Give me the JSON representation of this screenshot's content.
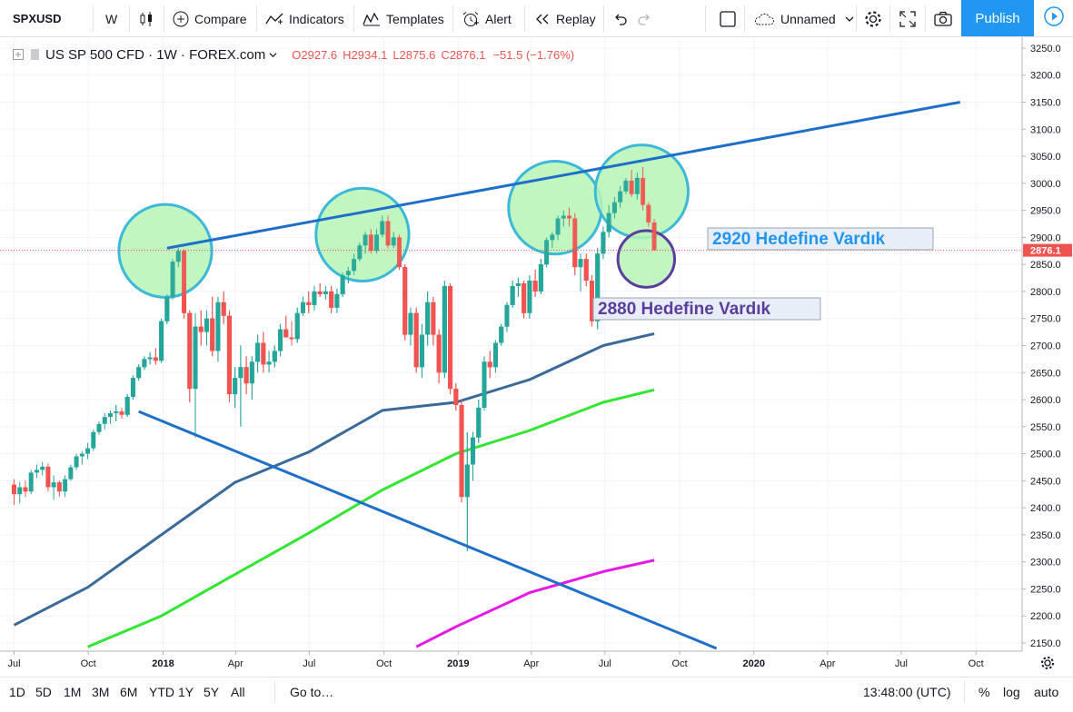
{
  "toolbar": {
    "symbol": "SPXUSD",
    "interval": "W",
    "compare": "Compare",
    "indicators": "Indicators",
    "templates": "Templates",
    "alert": "Alert",
    "replay": "Replay",
    "layout_name": "Unnamed",
    "publish": "Publish"
  },
  "legend": {
    "title": "US SP 500 CFD · 1W · FOREX.com",
    "open": "O2927.6",
    "high": "H2934.1",
    "low": "L2875.6",
    "close": "C2876.1",
    "change": "−51.5 (−1.76%)"
  },
  "annotations": {
    "label1": "2920 Hedefine Vardık",
    "label2": "2880 Hedefine Vardık"
  },
  "bottombar": {
    "ranges": [
      "1D",
      "5D",
      "1M",
      "3M",
      "6M",
      "YTD",
      "1Y",
      "5Y",
      "All"
    ],
    "goto": "Go to…",
    "time": "13:48:00 (UTC)",
    "percent": "%",
    "log": "log",
    "auto": "auto"
  },
  "colors": {
    "up": "#26a69a",
    "down": "#ef5350",
    "trendline": "#1e6fc9",
    "ma_dark": "#3a6a9a",
    "ma_green": "#32e632",
    "ma_magenta": "#e619e6",
    "circle_fill": "#b6f5b6",
    "circle_stroke": "#3cb8d8",
    "label1": "#2196f3",
    "label2": "#5c3d9e",
    "publish": "#2196f3"
  },
  "chart_data": {
    "type": "candlestick",
    "symbol": "US SP 500 CFD",
    "interval": "1W",
    "source": "FOREX.com",
    "ylim": [
      2140,
      3270
    ],
    "y_ticks": [
      2150,
      2200,
      2250,
      2300,
      2350,
      2400,
      2450,
      2500,
      2550,
      2600,
      2650,
      2700,
      2750,
      2800,
      2850,
      2900,
      2950,
      3000,
      3050,
      3100,
      3150,
      3200,
      3250
    ],
    "y_tick_labels": [
      "2150.0",
      "2200.0",
      "2250.0",
      "2300.0",
      "2350.0",
      "2400.0",
      "2450.0",
      "2500.0",
      "2550.0",
      "2600.0",
      "2650.0",
      "2700.0",
      "2750.0",
      "2800.0",
      "2850.0",
      "2900.0",
      "2950.0",
      "3000.0",
      "3050.0",
      "3100.0",
      "3150.0",
      "3200.0",
      "3250.0"
    ],
    "x_ticks": [
      {
        "label": "Jul",
        "t": 0.0
      },
      {
        "label": "Oct",
        "t": 13.1
      },
      {
        "label": "2018",
        "t": 26.3
      },
      {
        "label": "Apr",
        "t": 39.1
      },
      {
        "label": "Jul",
        "t": 52.1
      },
      {
        "label": "Oct",
        "t": 65.3
      },
      {
        "label": "2019",
        "t": 78.4
      },
      {
        "label": "Apr",
        "t": 91.3
      },
      {
        "label": "Jul",
        "t": 104.3
      },
      {
        "label": "Oct",
        "t": 117.5
      },
      {
        "label": "2020",
        "t": 130.6
      },
      {
        "label": "Apr",
        "t": 143.6
      },
      {
        "label": "Jul",
        "t": 156.6
      },
      {
        "label": "Oct",
        "t": 169.8
      }
    ],
    "last_price": 2876.1,
    "last_price_label": "2876.1",
    "candles": [
      {
        "t": 0,
        "o": 2443,
        "h": 2453,
        "l": 2405,
        "c": 2425
      },
      {
        "t": 1,
        "o": 2425,
        "h": 2448,
        "l": 2408,
        "c": 2438
      },
      {
        "t": 2,
        "o": 2438,
        "h": 2450,
        "l": 2420,
        "c": 2430
      },
      {
        "t": 3,
        "o": 2430,
        "h": 2470,
        "l": 2425,
        "c": 2465
      },
      {
        "t": 4,
        "o": 2465,
        "h": 2480,
        "l": 2455,
        "c": 2470
      },
      {
        "t": 5,
        "o": 2470,
        "h": 2485,
        "l": 2460,
        "c": 2476
      },
      {
        "t": 6,
        "o": 2476,
        "h": 2482,
        "l": 2430,
        "c": 2438
      },
      {
        "t": 7,
        "o": 2438,
        "h": 2460,
        "l": 2415,
        "c": 2447
      },
      {
        "t": 8,
        "o": 2447,
        "h": 2450,
        "l": 2420,
        "c": 2430
      },
      {
        "t": 9,
        "o": 2430,
        "h": 2460,
        "l": 2420,
        "c": 2453
      },
      {
        "t": 10,
        "o": 2453,
        "h": 2480,
        "l": 2450,
        "c": 2475
      },
      {
        "t": 11,
        "o": 2475,
        "h": 2500,
        "l": 2470,
        "c": 2495
      },
      {
        "t": 12,
        "o": 2495,
        "h": 2505,
        "l": 2480,
        "c": 2500
      },
      {
        "t": 13,
        "o": 2500,
        "h": 2520,
        "l": 2490,
        "c": 2510
      },
      {
        "t": 14,
        "o": 2510,
        "h": 2545,
        "l": 2505,
        "c": 2540
      },
      {
        "t": 15,
        "o": 2540,
        "h": 2560,
        "l": 2535,
        "c": 2555
      },
      {
        "t": 16,
        "o": 2555,
        "h": 2575,
        "l": 2545,
        "c": 2568
      },
      {
        "t": 17,
        "o": 2568,
        "h": 2580,
        "l": 2555,
        "c": 2575
      },
      {
        "t": 18,
        "o": 2575,
        "h": 2590,
        "l": 2560,
        "c": 2578
      },
      {
        "t": 19,
        "o": 2578,
        "h": 2585,
        "l": 2565,
        "c": 2572
      },
      {
        "t": 20,
        "o": 2572,
        "h": 2610,
        "l": 2568,
        "c": 2605
      },
      {
        "t": 21,
        "o": 2605,
        "h": 2645,
        "l": 2600,
        "c": 2640
      },
      {
        "t": 22,
        "o": 2640,
        "h": 2665,
        "l": 2635,
        "c": 2660
      },
      {
        "t": 23,
        "o": 2660,
        "h": 2680,
        "l": 2655,
        "c": 2675
      },
      {
        "t": 24,
        "o": 2675,
        "h": 2688,
        "l": 2665,
        "c": 2678
      },
      {
        "t": 25,
        "o": 2678,
        "h": 2695,
        "l": 2665,
        "c": 2672
      },
      {
        "t": 26,
        "o": 2672,
        "h": 2750,
        "l": 2668,
        "c": 2745
      },
      {
        "t": 27,
        "o": 2745,
        "h": 2795,
        "l": 2740,
        "c": 2790
      },
      {
        "t": 28,
        "o": 2790,
        "h": 2860,
        "l": 2785,
        "c": 2855
      },
      {
        "t": 29,
        "o": 2855,
        "h": 2880,
        "l": 2845,
        "c": 2875
      },
      {
        "t": 30,
        "o": 2875,
        "h": 2878,
        "l": 2750,
        "c": 2760
      },
      {
        "t": 31,
        "o": 2760,
        "h": 2765,
        "l": 2595,
        "c": 2620
      },
      {
        "t": 32,
        "o": 2620,
        "h": 2760,
        "l": 2530,
        "c": 2735
      },
      {
        "t": 33,
        "o": 2735,
        "h": 2765,
        "l": 2700,
        "c": 2725
      },
      {
        "t": 34,
        "o": 2725,
        "h": 2765,
        "l": 2700,
        "c": 2750
      },
      {
        "t": 35,
        "o": 2750,
        "h": 2790,
        "l": 2680,
        "c": 2690
      },
      {
        "t": 36,
        "o": 2690,
        "h": 2790,
        "l": 2670,
        "c": 2780
      },
      {
        "t": 37,
        "o": 2780,
        "h": 2800,
        "l": 2740,
        "c": 2755
      },
      {
        "t": 38,
        "o": 2755,
        "h": 2765,
        "l": 2595,
        "c": 2610
      },
      {
        "t": 39,
        "o": 2610,
        "h": 2660,
        "l": 2585,
        "c": 2640
      },
      {
        "t": 40,
        "o": 2640,
        "h": 2700,
        "l": 2550,
        "c": 2660
      },
      {
        "t": 41,
        "o": 2660,
        "h": 2680,
        "l": 2610,
        "c": 2630
      },
      {
        "t": 42,
        "o": 2630,
        "h": 2680,
        "l": 2600,
        "c": 2670
      },
      {
        "t": 43,
        "o": 2670,
        "h": 2720,
        "l": 2650,
        "c": 2705
      },
      {
        "t": 44,
        "o": 2705,
        "h": 2725,
        "l": 2650,
        "c": 2665
      },
      {
        "t": 45,
        "o": 2665,
        "h": 2690,
        "l": 2650,
        "c": 2670
      },
      {
        "t": 46,
        "o": 2670,
        "h": 2700,
        "l": 2660,
        "c": 2690
      },
      {
        "t": 47,
        "o": 2690,
        "h": 2740,
        "l": 2680,
        "c": 2730
      },
      {
        "t": 48,
        "o": 2730,
        "h": 2755,
        "l": 2715,
        "c": 2715
      },
      {
        "t": 49,
        "o": 2715,
        "h": 2745,
        "l": 2700,
        "c": 2712
      },
      {
        "t": 50,
        "o": 2712,
        "h": 2770,
        "l": 2705,
        "c": 2760
      },
      {
        "t": 51,
        "o": 2760,
        "h": 2790,
        "l": 2755,
        "c": 2780
      },
      {
        "t": 52,
        "o": 2780,
        "h": 2800,
        "l": 2760,
        "c": 2775
      },
      {
        "t": 53,
        "o": 2775,
        "h": 2810,
        "l": 2765,
        "c": 2800
      },
      {
        "t": 54,
        "o": 2800,
        "h": 2815,
        "l": 2790,
        "c": 2795
      },
      {
        "t": 55,
        "o": 2795,
        "h": 2810,
        "l": 2785,
        "c": 2800
      },
      {
        "t": 56,
        "o": 2800,
        "h": 2810,
        "l": 2760,
        "c": 2770
      },
      {
        "t": 57,
        "o": 2770,
        "h": 2805,
        "l": 2760,
        "c": 2795
      },
      {
        "t": 58,
        "o": 2795,
        "h": 2835,
        "l": 2790,
        "c": 2830
      },
      {
        "t": 59,
        "o": 2830,
        "h": 2845,
        "l": 2815,
        "c": 2838
      },
      {
        "t": 60,
        "o": 2838,
        "h": 2870,
        "l": 2830,
        "c": 2860
      },
      {
        "t": 61,
        "o": 2860,
        "h": 2890,
        "l": 2855,
        "c": 2885
      },
      {
        "t": 62,
        "o": 2885,
        "h": 2910,
        "l": 2870,
        "c": 2905
      },
      {
        "t": 63,
        "o": 2905,
        "h": 2915,
        "l": 2870,
        "c": 2875
      },
      {
        "t": 64,
        "o": 2875,
        "h": 2915,
        "l": 2870,
        "c": 2905
      },
      {
        "t": 65,
        "o": 2905,
        "h": 2940,
        "l": 2900,
        "c": 2930
      },
      {
        "t": 66,
        "o": 2930,
        "h": 2940,
        "l": 2880,
        "c": 2885
      },
      {
        "t": 67,
        "o": 2885,
        "h": 2910,
        "l": 2880,
        "c": 2900
      },
      {
        "t": 68,
        "o": 2900,
        "h": 2905,
        "l": 2840,
        "c": 2845
      },
      {
        "t": 69,
        "o": 2845,
        "h": 2850,
        "l": 2710,
        "c": 2720
      },
      {
        "t": 70,
        "o": 2720,
        "h": 2770,
        "l": 2700,
        "c": 2760
      },
      {
        "t": 71,
        "o": 2760,
        "h": 2770,
        "l": 2650,
        "c": 2660
      },
      {
        "t": 72,
        "o": 2660,
        "h": 2740,
        "l": 2640,
        "c": 2720
      },
      {
        "t": 73,
        "o": 2720,
        "h": 2800,
        "l": 2700,
        "c": 2780
      },
      {
        "t": 74,
        "o": 2780,
        "h": 2790,
        "l": 2700,
        "c": 2720
      },
      {
        "t": 75,
        "o": 2720,
        "h": 2730,
        "l": 2630,
        "c": 2650
      },
      {
        "t": 76,
        "o": 2650,
        "h": 2820,
        "l": 2640,
        "c": 2810
      },
      {
        "t": 77,
        "o": 2810,
        "h": 2815,
        "l": 2610,
        "c": 2620
      },
      {
        "t": 78,
        "o": 2620,
        "h": 2630,
        "l": 2580,
        "c": 2590
      },
      {
        "t": 79,
        "o": 2590,
        "h": 2600,
        "l": 2410,
        "c": 2420
      },
      {
        "t": 80,
        "o": 2420,
        "h": 2540,
        "l": 2320,
        "c": 2480
      },
      {
        "t": 81,
        "o": 2480,
        "h": 2540,
        "l": 2450,
        "c": 2530
      },
      {
        "t": 82,
        "o": 2530,
        "h": 2600,
        "l": 2520,
        "c": 2585
      },
      {
        "t": 83,
        "o": 2585,
        "h": 2680,
        "l": 2580,
        "c": 2670
      },
      {
        "t": 84,
        "o": 2670,
        "h": 2690,
        "l": 2640,
        "c": 2660
      },
      {
        "t": 85,
        "o": 2660,
        "h": 2710,
        "l": 2650,
        "c": 2705
      },
      {
        "t": 86,
        "o": 2705,
        "h": 2740,
        "l": 2700,
        "c": 2735
      },
      {
        "t": 87,
        "o": 2735,
        "h": 2780,
        "l": 2725,
        "c": 2775
      },
      {
        "t": 88,
        "o": 2775,
        "h": 2820,
        "l": 2770,
        "c": 2810
      },
      {
        "t": 89,
        "o": 2810,
        "h": 2825,
        "l": 2790,
        "c": 2815
      },
      {
        "t": 90,
        "o": 2815,
        "h": 2820,
        "l": 2750,
        "c": 2760
      },
      {
        "t": 91,
        "o": 2760,
        "h": 2830,
        "l": 2750,
        "c": 2820
      },
      {
        "t": 92,
        "o": 2820,
        "h": 2840,
        "l": 2790,
        "c": 2800
      },
      {
        "t": 93,
        "o": 2800,
        "h": 2860,
        "l": 2795,
        "c": 2850
      },
      {
        "t": 94,
        "o": 2850,
        "h": 2900,
        "l": 2845,
        "c": 2895
      },
      {
        "t": 95,
        "o": 2895,
        "h": 2910,
        "l": 2880,
        "c": 2905
      },
      {
        "t": 96,
        "o": 2905,
        "h": 2940,
        "l": 2895,
        "c": 2935
      },
      {
        "t": 97,
        "o": 2935,
        "h": 2950,
        "l": 2920,
        "c": 2940
      },
      {
        "t": 98,
        "o": 2940,
        "h": 2955,
        "l": 2920,
        "c": 2935
      },
      {
        "t": 99,
        "o": 2935,
        "h": 2945,
        "l": 2830,
        "c": 2845
      },
      {
        "t": 100,
        "o": 2845,
        "h": 2870,
        "l": 2800,
        "c": 2860
      },
      {
        "t": 101,
        "o": 2860,
        "h": 2870,
        "l": 2810,
        "c": 2820
      },
      {
        "t": 102,
        "o": 2820,
        "h": 2830,
        "l": 2735,
        "c": 2745
      },
      {
        "t": 103,
        "o": 2745,
        "h": 2880,
        "l": 2730,
        "c": 2870
      },
      {
        "t": 104,
        "o": 2870,
        "h": 2920,
        "l": 2860,
        "c": 2910
      },
      {
        "t": 105,
        "o": 2910,
        "h": 2960,
        "l": 2900,
        "c": 2945
      },
      {
        "t": 106,
        "o": 2945,
        "h": 2975,
        "l": 2935,
        "c": 2965
      },
      {
        "t": 107,
        "o": 2965,
        "h": 2995,
        "l": 2955,
        "c": 2985
      },
      {
        "t": 108,
        "o": 2985,
        "h": 3010,
        "l": 2980,
        "c": 3005
      },
      {
        "t": 109,
        "o": 3005,
        "h": 3025,
        "l": 2975,
        "c": 2980
      },
      {
        "t": 110,
        "o": 2980,
        "h": 3020,
        "l": 2970,
        "c": 3010
      },
      {
        "t": 111,
        "o": 3010,
        "h": 3030,
        "l": 2950,
        "c": 2960
      },
      {
        "t": 112,
        "o": 2960,
        "h": 2965,
        "l": 2920,
        "c": 2927.6
      },
      {
        "t": 113,
        "o": 2927.6,
        "h": 2934.1,
        "l": 2875.6,
        "c": 2876.1
      }
    ],
    "moving_averages": [
      {
        "color": "#3a6a9a",
        "points": [
          [
            0,
            2183
          ],
          [
            13,
            2253
          ],
          [
            26,
            2350
          ],
          [
            39,
            2447
          ],
          [
            52,
            2503
          ],
          [
            65,
            2580
          ],
          [
            78,
            2595
          ],
          [
            91,
            2637
          ],
          [
            104,
            2700
          ],
          [
            113,
            2722
          ]
        ]
      },
      {
        "color": "#32e632",
        "points": [
          [
            13,
            2143
          ],
          [
            26,
            2200
          ],
          [
            39,
            2277
          ],
          [
            52,
            2353
          ],
          [
            65,
            2433
          ],
          [
            78,
            2500
          ],
          [
            91,
            2543
          ],
          [
            104,
            2595
          ],
          [
            113,
            2618
          ]
        ]
      },
      {
        "color": "#e619e6",
        "points": [
          [
            71,
            2143
          ],
          [
            78,
            2180
          ],
          [
            91,
            2243
          ],
          [
            104,
            2282
          ],
          [
            113,
            2303
          ]
        ]
      }
    ],
    "trendlines": [
      {
        "from": [
          27,
          2880
        ],
        "to": [
          167,
          3150
        ]
      },
      {
        "from": [
          22,
          2578
        ],
        "to": [
          124,
          2140
        ]
      }
    ],
    "circles": [
      {
        "t": 26.7,
        "v": 2875,
        "radius_weeks": 8.2,
        "style": "green"
      },
      {
        "t": 61.5,
        "v": 2905,
        "radius_weeks": 8.2,
        "style": "green"
      },
      {
        "t": 95.5,
        "v": 2955,
        "radius_weeks": 8.2,
        "style": "green"
      },
      {
        "t": 110.8,
        "v": 2985,
        "radius_weeks": 8.2,
        "style": "green"
      },
      {
        "t": 111.6,
        "v": 2860,
        "radius_weeks": 5.0,
        "style": "purple"
      }
    ]
  }
}
